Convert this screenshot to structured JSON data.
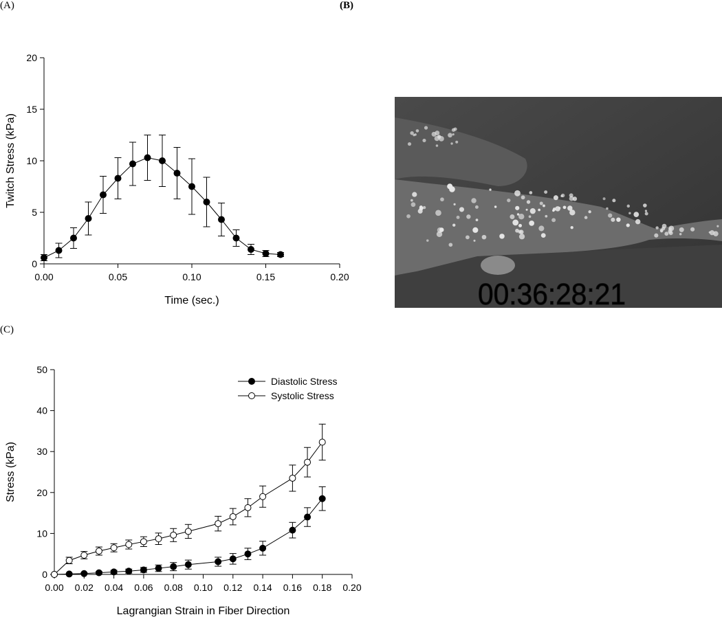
{
  "panels": {
    "a_label": "(A)",
    "b_label": "(B)",
    "c_label": "(C)"
  },
  "photo": {
    "timestamp": "00:36:28:21"
  },
  "chart_data": [
    {
      "id": "A",
      "type": "line",
      "xlabel": "Time (sec.)",
      "ylabel": "Twitch Stress (kPa)",
      "xlim": [
        0,
        0.2
      ],
      "ylim": [
        0,
        20
      ],
      "xticks": [
        0,
        0.05,
        0.1,
        0.15,
        0.2
      ],
      "yticks": [
        0,
        5,
        10,
        15,
        20
      ],
      "xtick_labels": [
        "0.00",
        "0.05",
        "0.10",
        "0.15",
        "0.20"
      ],
      "ytick_labels": [
        "0",
        "5",
        "10",
        "15",
        "20"
      ],
      "grid": false,
      "series": [
        {
          "marker": "filled",
          "x": [
            0,
            0.01,
            0.02,
            0.03,
            0.04,
            0.05,
            0.06,
            0.07,
            0.08,
            0.09,
            0.1,
            0.11,
            0.12,
            0.13,
            0.14,
            0.15,
            0.16
          ],
          "y": [
            0.6,
            1.3,
            2.5,
            4.4,
            6.7,
            8.3,
            9.7,
            10.3,
            10.0,
            8.8,
            7.5,
            6.0,
            4.3,
            2.5,
            1.4,
            1.0,
            0.9
          ],
          "err": [
            0.3,
            0.7,
            1.0,
            1.6,
            1.8,
            2.0,
            2.1,
            2.2,
            2.5,
            2.5,
            2.7,
            2.4,
            1.6,
            0.8,
            0.5,
            0.3,
            0.2
          ]
        }
      ]
    },
    {
      "id": "C",
      "type": "line",
      "xlabel": "Lagrangian Strain in Fiber Direction",
      "ylabel": "Stress (kPa)",
      "xlim": [
        0,
        0.2
      ],
      "ylim": [
        0,
        50
      ],
      "xticks": [
        0,
        0.02,
        0.04,
        0.06,
        0.08,
        0.1,
        0.12,
        0.14,
        0.16,
        0.18,
        0.2
      ],
      "yticks": [
        0,
        10,
        20,
        30,
        40,
        50
      ],
      "xtick_labels": [
        "0.00",
        "0.02",
        "0.04",
        "0.06",
        "0.08",
        "0.10",
        "0.12",
        "0.14",
        "0.16",
        "0.18",
        "0.20"
      ],
      "ytick_labels": [
        "0",
        "10",
        "20",
        "30",
        "40",
        "50"
      ],
      "grid": false,
      "legend_position": "top-right",
      "series": [
        {
          "name": "Diastolic Stress",
          "marker": "filled",
          "x": [
            0,
            0.01,
            0.02,
            0.03,
            0.04,
            0.05,
            0.06,
            0.07,
            0.08,
            0.09,
            0.11,
            0.12,
            0.13,
            0.14,
            0.16,
            0.17,
            0.18
          ],
          "y": [
            0,
            0.1,
            0.2,
            0.4,
            0.6,
            0.8,
            1.1,
            1.5,
            1.9,
            2.4,
            3.1,
            3.8,
            5.0,
            6.4,
            10.8,
            14.0,
            18.5
          ],
          "err": [
            0,
            0.1,
            0.2,
            0.3,
            0.4,
            0.5,
            0.6,
            0.8,
            1.0,
            1.1,
            1.1,
            1.3,
            1.4,
            1.7,
            1.9,
            2.3,
            2.9
          ]
        },
        {
          "name": "Systolic Stress",
          "marker": "open",
          "x": [
            0,
            0.01,
            0.02,
            0.03,
            0.04,
            0.05,
            0.06,
            0.07,
            0.08,
            0.09,
            0.11,
            0.12,
            0.13,
            0.14,
            0.16,
            0.17,
            0.18
          ],
          "y": [
            0,
            3.4,
            4.7,
            5.7,
            6.5,
            7.3,
            8.0,
            8.7,
            9.6,
            10.5,
            12.4,
            14.1,
            16.3,
            19.0,
            23.5,
            27.4,
            32.3
          ],
          "err": [
            0,
            0.8,
            0.9,
            1.0,
            1.0,
            1.1,
            1.2,
            1.4,
            1.6,
            1.7,
            1.8,
            2.0,
            2.2,
            2.6,
            3.2,
            3.6,
            4.4
          ]
        }
      ]
    }
  ]
}
